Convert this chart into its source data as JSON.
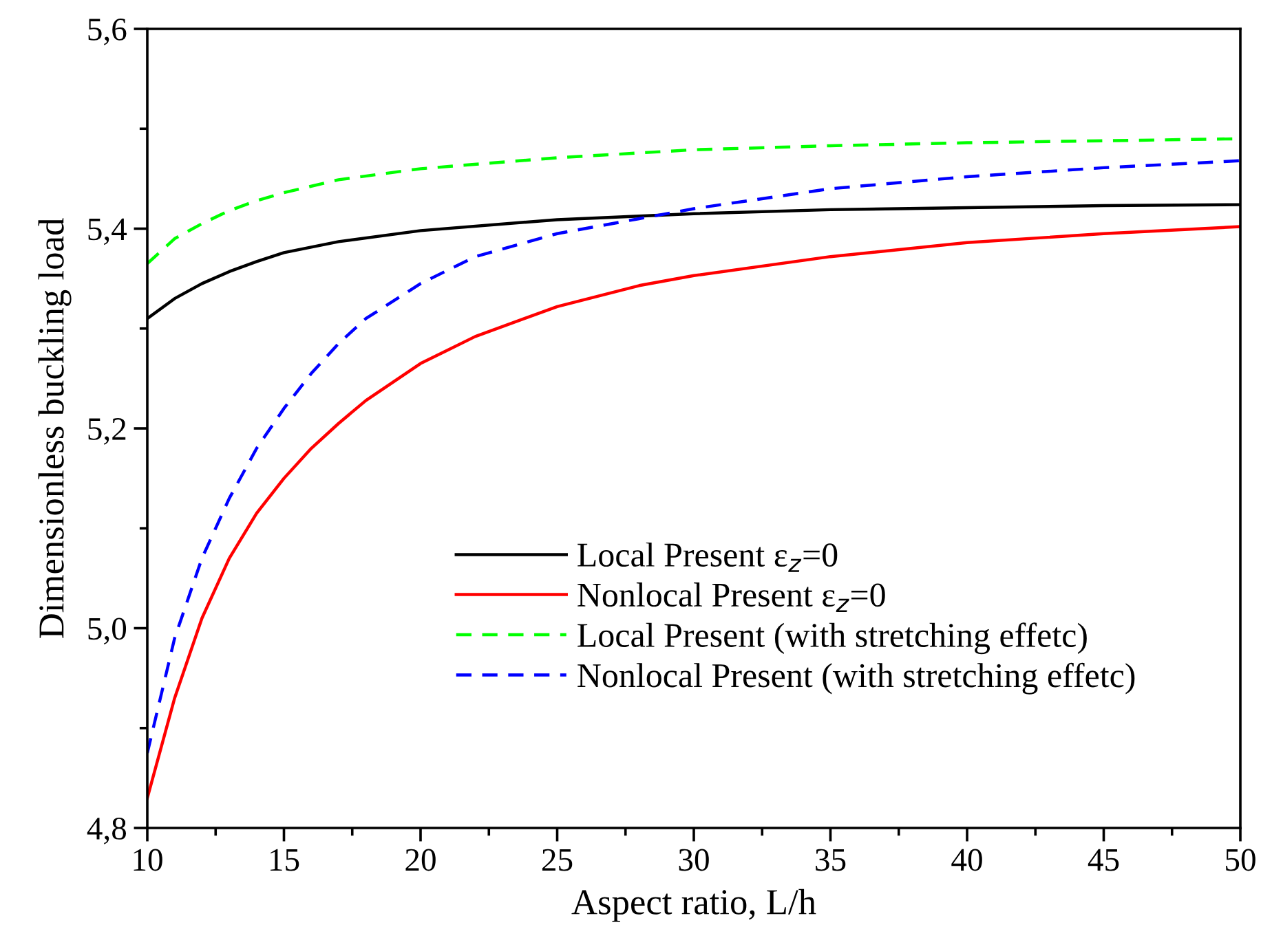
{
  "chart_data": {
    "type": "line",
    "xlabel": "Aspect ratio, L/h",
    "ylabel": "Dimensionless buckling load",
    "xlim": [
      10,
      50
    ],
    "ylim": [
      4.8,
      5.6
    ],
    "xticks": [
      10,
      {
        "value": 12.5,
        "label": null
      },
      15,
      {
        "value": 17.5,
        "label": null
      },
      20,
      {
        "value": 22.5,
        "label": null
      },
      25,
      {
        "value": 27.5,
        "label": null
      },
      30,
      {
        "value": 32.5,
        "label": null
      },
      35,
      {
        "value": 37.5,
        "label": null
      },
      40,
      {
        "value": 42.5,
        "label": null
      },
      45,
      {
        "value": 47.5,
        "label": null
      },
      50
    ],
    "yticks": [
      {
        "value": 4.8,
        "label": "4,8"
      },
      {
        "value": 4.9,
        "label": null
      },
      {
        "value": 5.0,
        "label": "5,0"
      },
      {
        "value": 5.1,
        "label": null
      },
      {
        "value": 5.2,
        "label": "5,2"
      },
      {
        "value": 5.3,
        "label": null
      },
      {
        "value": 5.4,
        "label": "5,4"
      },
      {
        "value": 5.5,
        "label": null
      },
      {
        "value": 5.6,
        "label": "5,6"
      }
    ],
    "grid": false,
    "legend": "right",
    "marker": "none",
    "series": [
      {
        "name": "Local Present ε$_{z}$=0",
        "color": "#000000",
        "line_style": "solid",
        "x": [
          10,
          11,
          12,
          13,
          14,
          15,
          17,
          20,
          25,
          30,
          35,
          40,
          45,
          50
        ],
        "values": [
          5.31,
          5.33,
          5.345,
          5.357,
          5.367,
          5.376,
          5.387,
          5.398,
          5.409,
          5.415,
          5.419,
          5.421,
          5.423,
          5.424
        ]
      },
      {
        "name": "Nonlocal Present ε$_{z}$=0",
        "color": "#ff0000",
        "line_style": "solid",
        "x": [
          10,
          11,
          12,
          13,
          14,
          15,
          16,
          17,
          18,
          20,
          22,
          25,
          28,
          30,
          35,
          40,
          45,
          50
        ],
        "values": [
          4.83,
          4.93,
          5.01,
          5.07,
          5.115,
          5.15,
          5.18,
          5.205,
          5.228,
          5.265,
          5.292,
          5.322,
          5.343,
          5.353,
          5.372,
          5.386,
          5.395,
          5.402
        ]
      },
      {
        "name": "Local Present (with stretching effetc)",
        "color": "#00ff00",
        "line_style": "dashed",
        "x": [
          10,
          11,
          12,
          13,
          14,
          15,
          17,
          20,
          25,
          30,
          35,
          40,
          45,
          50
        ],
        "values": [
          5.365,
          5.39,
          5.405,
          5.418,
          5.428,
          5.436,
          5.449,
          5.46,
          5.471,
          5.479,
          5.483,
          5.486,
          5.488,
          5.49
        ]
      },
      {
        "name": "Nonlocal Present (with stretching effetc)",
        "color": "#0000ff",
        "line_style": "dashed",
        "x": [
          10,
          11,
          12,
          13,
          14,
          15,
          16,
          17,
          18,
          20,
          22,
          25,
          28,
          30,
          35,
          40,
          45,
          50
        ],
        "values": [
          4.875,
          4.99,
          5.07,
          5.13,
          5.18,
          5.22,
          5.255,
          5.285,
          5.31,
          5.345,
          5.372,
          5.395,
          5.41,
          5.42,
          5.44,
          5.452,
          5.461,
          5.468
        ]
      }
    ]
  }
}
